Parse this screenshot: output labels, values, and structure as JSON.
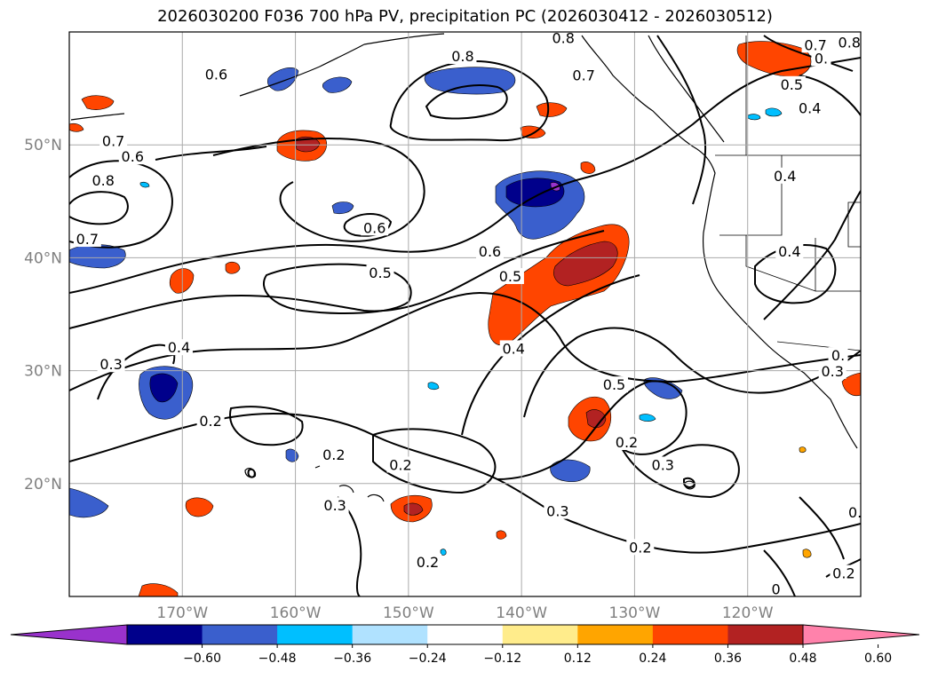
{
  "title": "2026030200 F036 700 hPa PV, precipitation PC (2026030412 - 2026030512)",
  "map": {
    "lon_range": [
      -180,
      -110
    ],
    "lat_range": [
      10,
      60
    ],
    "lat_labels": [
      {
        "lat": 50,
        "text": "50°N"
      },
      {
        "lat": 40,
        "text": "40°N"
      },
      {
        "lat": 30,
        "text": "30°N"
      },
      {
        "lat": 20,
        "text": "20°N"
      }
    ],
    "lon_labels": [
      {
        "lon": -170,
        "text": "170°W"
      },
      {
        "lon": -160,
        "text": "160°W"
      },
      {
        "lon": -150,
        "text": "150°W"
      },
      {
        "lon": -140,
        "text": "140°W"
      },
      {
        "lon": -130,
        "text": "130°W"
      },
      {
        "lon": -120,
        "text": "120°W"
      }
    ],
    "gridline_color": "#aaaaaa"
  },
  "contour_labels": [
    {
      "lon": -167.5,
      "lat": 25.5,
      "text": "0.2"
    },
    {
      "lon": -156.6,
      "lat": 22.5,
      "text": "0.2"
    },
    {
      "lon": -156.5,
      "lat": 18.0,
      "text": "0.3"
    },
    {
      "lon": -148.3,
      "lat": 13.0,
      "text": "0.2"
    },
    {
      "lon": -150.7,
      "lat": 21.6,
      "text": "0.2"
    },
    {
      "lon": -176.3,
      "lat": 30.5,
      "text": "0.3"
    },
    {
      "lon": -170.3,
      "lat": 32.0,
      "text": "0.4"
    },
    {
      "lon": -176.1,
      "lat": 50.3,
      "text": "0.7"
    },
    {
      "lon": -174.4,
      "lat": 48.9,
      "text": "0.6"
    },
    {
      "lon": -177.0,
      "lat": 46.8,
      "text": "0.8"
    },
    {
      "lon": -178.4,
      "lat": 41.6,
      "text": "0.7"
    },
    {
      "lon": -152.5,
      "lat": 38.6,
      "text": "0.5"
    },
    {
      "lon": -153.0,
      "lat": 42.6,
      "text": "0.6"
    },
    {
      "lon": -167.0,
      "lat": 56.2,
      "text": "0.6"
    },
    {
      "lon": -145.2,
      "lat": 57.8,
      "text": "0.8"
    },
    {
      "lon": -142.8,
      "lat": 40.5,
      "text": "0.6"
    },
    {
      "lon": -141.0,
      "lat": 38.3,
      "text": "0.5"
    },
    {
      "lon": -140.7,
      "lat": 31.9,
      "text": "0.4"
    },
    {
      "lon": -131.8,
      "lat": 28.7,
      "text": "0.5"
    },
    {
      "lon": -130.7,
      "lat": 23.6,
      "text": "0.2"
    },
    {
      "lon": -127.5,
      "lat": 21.6,
      "text": "0.3"
    },
    {
      "lon": -129.5,
      "lat": 14.3,
      "text": "0.2"
    },
    {
      "lon": -136.8,
      "lat": 17.5,
      "text": "0.3"
    },
    {
      "lon": -116.3,
      "lat": 40.5,
      "text": "0.4"
    },
    {
      "lon": -116.7,
      "lat": 47.2,
      "text": "0.4"
    },
    {
      "lon": -116.1,
      "lat": 55.3,
      "text": "0.5"
    },
    {
      "lon": -114.5,
      "lat": 53.2,
      "text": "0.4"
    },
    {
      "lon": -114.0,
      "lat": 58.8,
      "text": "0.7"
    },
    {
      "lon": -111.0,
      "lat": 59.0,
      "text": "0.8"
    },
    {
      "lon": -136.3,
      "lat": 59.4,
      "text": "0.8"
    },
    {
      "lon": -134.5,
      "lat": 56.1,
      "text": "0.7"
    },
    {
      "lon": -111.5,
      "lat": 12.0,
      "text": "0.2"
    },
    {
      "lon": -112.5,
      "lat": 29.9,
      "text": "0.3"
    },
    {
      "lon": -117.5,
      "lat": 10.6,
      "text": "0"
    },
    {
      "lon": -110.5,
      "lat": 17.4,
      "text": "0."
    },
    {
      "lon": -112.0,
      "lat": 31.3,
      "text": "0."
    },
    {
      "lon": -113.5,
      "lat": 57.6,
      "text": "0."
    }
  ],
  "colorbar": {
    "ticks": [
      "−0.60",
      "−0.48",
      "−0.36",
      "−0.24",
      "−0.12",
      "0.12",
      "0.24",
      "0.36",
      "0.48",
      "0.60"
    ],
    "colors": [
      "#9932cc",
      "#00008b",
      "#3a5fcd",
      "#00bfff",
      "#b0e2ff",
      "#ffffff",
      "#ffec8b",
      "#ffa500",
      "#ff4500",
      "#b22222",
      "#ff82ab"
    ]
  }
}
